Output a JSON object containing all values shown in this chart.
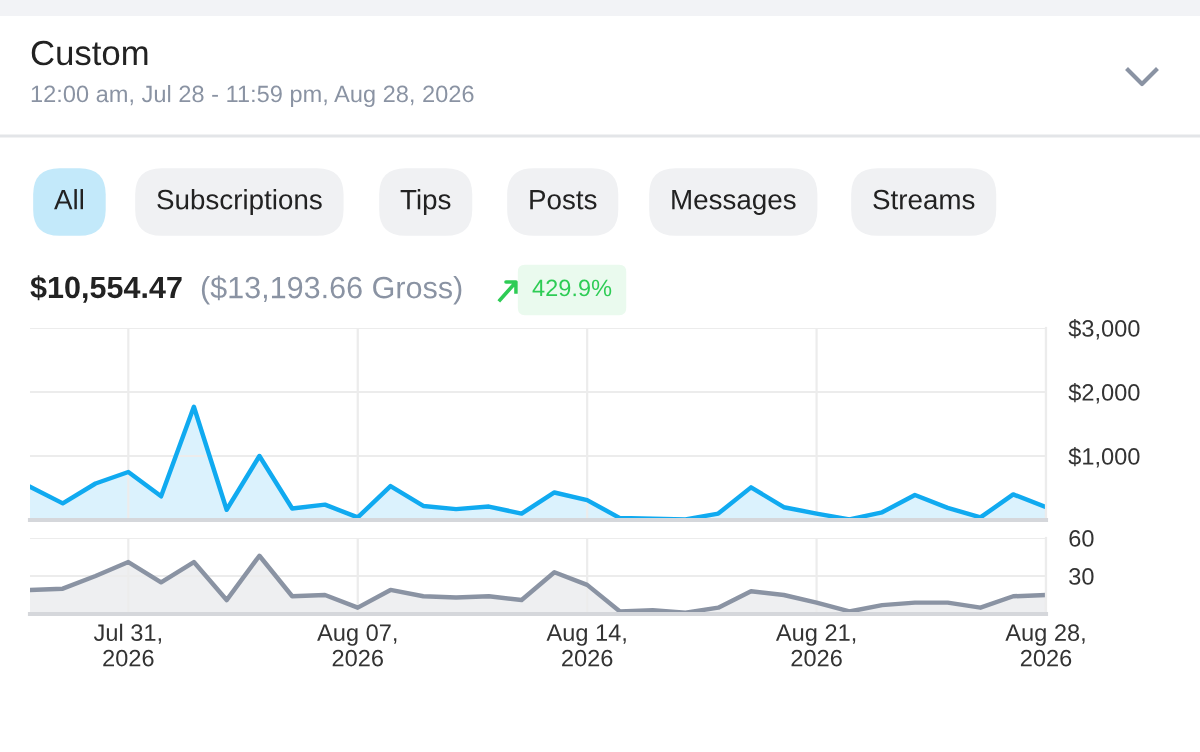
{
  "chart_data": [
    {
      "type": "area",
      "title": "Custom",
      "subtitle": "12:00 am, Jul 28 - 11:59 pm, Aug 28, 2026",
      "annotations": [
        "All",
        "Subscriptions",
        "Tips",
        "Posts",
        "Messages",
        "Streams",
        "$10,554.47",
        "($13,193.66 Gross)",
        "429.9%"
      ],
      "x": [
        "2026-07-28",
        "2026-07-29",
        "2026-07-30",
        "2026-07-31",
        "2026-08-01",
        "2026-08-02",
        "2026-08-03",
        "2026-08-04",
        "2026-08-05",
        "2026-08-06",
        "2026-08-07",
        "2026-08-08",
        "2026-08-09",
        "2026-08-10",
        "2026-08-11",
        "2026-08-12",
        "2026-08-13",
        "2026-08-14",
        "2026-08-15",
        "2026-08-16",
        "2026-08-17",
        "2026-08-18",
        "2026-08-19",
        "2026-08-20",
        "2026-08-21",
        "2026-08-22",
        "2026-08-23",
        "2026-08-24",
        "2026-08-25",
        "2026-08-26",
        "2026-08-27",
        "2026-08-28"
      ],
      "series": [
        {
          "color": "#10aaf0",
          "values": [
            520,
            260,
            570,
            750,
            370,
            1770,
            160,
            1000,
            180,
            240,
            40,
            530,
            220,
            170,
            210,
            100,
            430,
            310,
            30,
            20,
            10,
            100,
            510,
            200,
            100,
            10,
            120,
            390,
            190,
            40,
            400,
            200
          ]
        }
      ],
      "xlim": [
        "2026-07-28",
        "2026-08-28"
      ],
      "xticks": [
        "2026-07-31",
        "2026-08-07",
        "2026-08-14",
        "2026-08-21",
        "2026-08-28"
      ],
      "ylim": [
        0,
        3000
      ],
      "yticks": [
        {
          "value": 1000,
          "label": "$1,000"
        },
        {
          "value": 2000,
          "label": "$2,000"
        },
        {
          "value": 3000,
          "label": "$3,000"
        }
      ],
      "tick_labels": "y",
      "grid": true
    },
    {
      "type": "area",
      "x": [
        "2026-07-28",
        "2026-07-29",
        "2026-07-30",
        "2026-07-31",
        "2026-08-01",
        "2026-08-02",
        "2026-08-03",
        "2026-08-04",
        "2026-08-05",
        "2026-08-06",
        "2026-08-07",
        "2026-08-08",
        "2026-08-09",
        "2026-08-10",
        "2026-08-11",
        "2026-08-12",
        "2026-08-13",
        "2026-08-14",
        "2026-08-15",
        "2026-08-16",
        "2026-08-17",
        "2026-08-18",
        "2026-08-19",
        "2026-08-20",
        "2026-08-21",
        "2026-08-22",
        "2026-08-23",
        "2026-08-24",
        "2026-08-25",
        "2026-08-26",
        "2026-08-27",
        "2026-08-28"
      ],
      "series": [
        {
          "color": "#8a93a3",
          "values": [
            19,
            20,
            30,
            41,
            25,
            41,
            11,
            46,
            14,
            15,
            5,
            19,
            14,
            13,
            14,
            11,
            33,
            23,
            2,
            3,
            1,
            5,
            18,
            15,
            9,
            2,
            7,
            9,
            9,
            5,
            14,
            15
          ]
        }
      ],
      "xlim": [
        "2026-07-28",
        "2026-08-28"
      ],
      "xticks": [
        {
          "value": "2026-07-31",
          "label": "Jul 31,\n2026"
        },
        {
          "value": "2026-08-07",
          "label": "Aug 07,\n2026"
        },
        {
          "value": "2026-08-14",
          "label": "Aug 14,\n2026"
        },
        {
          "value": "2026-08-21",
          "label": "Aug 21,\n2026"
        },
        {
          "value": "2026-08-28",
          "label": "Aug 28,\n2026"
        }
      ],
      "ylim": [
        0,
        60
      ],
      "yticks": [
        30,
        60
      ],
      "grid": true
    }
  ]
}
